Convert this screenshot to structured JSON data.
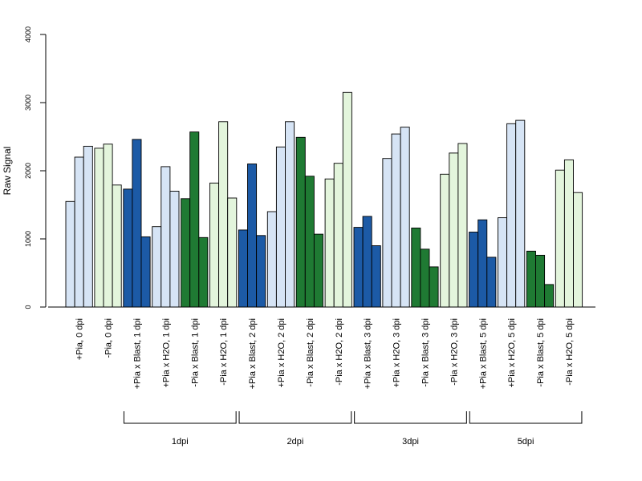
{
  "chart_data": {
    "type": "bar",
    "ylabel": "Raw Signal",
    "ylim": [
      0,
      4000
    ],
    "yticks": [
      "0",
      "1000",
      "2000",
      "3000",
      "4000"
    ],
    "grid": false,
    "groups": [
      {
        "label": "+Pia, 0 dpi",
        "color": "#D6E4F5",
        "values": [
          1550,
          2200,
          2360
        ]
      },
      {
        "label": "-Pia, 0 dpi",
        "color": "#E3F5DC",
        "values": [
          2330,
          2390,
          1790
        ]
      },
      {
        "label": "+Pia x Blast, 1 dpi",
        "color": "#1C5AA6",
        "values": [
          1730,
          2460,
          1030
        ]
      },
      {
        "label": "+Pia x H2O, 1 dpi",
        "color": "#D6E4F5",
        "values": [
          1180,
          2060,
          1700
        ]
      },
      {
        "label": "-Pia x Blast, 1 dpi",
        "color": "#1F7A33",
        "values": [
          1590,
          2570,
          1020
        ]
      },
      {
        "label": "-Pia x H2O, 1 dpi",
        "color": "#E3F5DC",
        "values": [
          1820,
          2720,
          1600
        ]
      },
      {
        "label": "+Pia x Blast, 2 dpi",
        "color": "#1C5AA6",
        "values": [
          1130,
          2100,
          1050
        ]
      },
      {
        "label": "+Pia x H2O, 2 dpi",
        "color": "#D6E4F5",
        "values": [
          1400,
          2350,
          2720
        ]
      },
      {
        "label": "-Pia x Blast, 2 dpi",
        "color": "#1F7A33",
        "values": [
          2490,
          1920,
          1070
        ]
      },
      {
        "label": "-Pia x H2O, 2 dpi",
        "color": "#E3F5DC",
        "values": [
          1880,
          2110,
          3150
        ]
      },
      {
        "label": "+Pia x Blast, 3 dpi",
        "color": "#1C5AA6",
        "values": [
          1170,
          1330,
          900
        ]
      },
      {
        "label": "+Pia x H2O, 3 dpi",
        "color": "#D6E4F5",
        "values": [
          2180,
          2540,
          2640
        ]
      },
      {
        "label": "-Pia x Blast, 3 dpi",
        "color": "#1F7A33",
        "values": [
          1160,
          850,
          590
        ]
      },
      {
        "label": "-Pia x H2O, 3 dpi",
        "color": "#E3F5DC",
        "values": [
          1950,
          2260,
          2400
        ]
      },
      {
        "label": "+Pia x Blast, 5 dpi",
        "color": "#1C5AA6",
        "values": [
          1100,
          1280,
          730
        ]
      },
      {
        "label": "+Pia x H2O, 5 dpi",
        "color": "#D6E4F5",
        "values": [
          1310,
          2690,
          2740
        ]
      },
      {
        "label": "-Pia x Blast, 5 dpi",
        "color": "#1F7A33",
        "values": [
          820,
          760,
          330
        ]
      },
      {
        "label": "-Pia x H2O, 5 dpi",
        "color": "#E3F5DC",
        "values": [
          2010,
          2160,
          1680
        ]
      }
    ],
    "timepoint_brackets": [
      {
        "label": "1dpi",
        "from_group": 2,
        "to_group": 5
      },
      {
        "label": "2dpi",
        "from_group": 6,
        "to_group": 9
      },
      {
        "label": "3dpi",
        "from_group": 10,
        "to_group": 13
      },
      {
        "label": "5dpi",
        "from_group": 14,
        "to_group": 17
      }
    ]
  }
}
